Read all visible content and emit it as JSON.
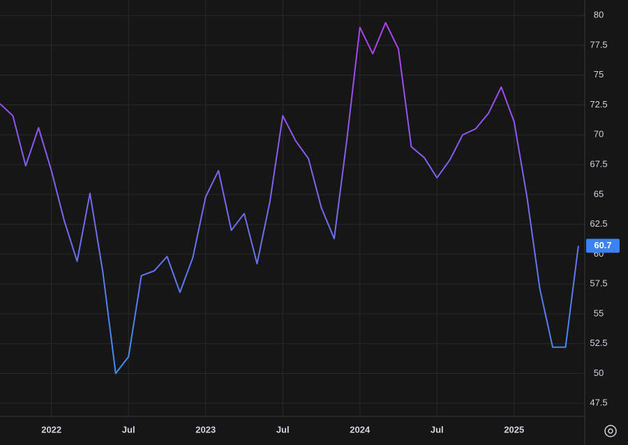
{
  "chart_data": {
    "type": "line",
    "x": [
      "2021-09",
      "2021-10",
      "2021-11",
      "2021-12",
      "2022-01",
      "2022-02",
      "2022-03",
      "2022-04",
      "2022-05",
      "2022-06",
      "2022-07",
      "2022-08",
      "2022-09",
      "2022-10",
      "2022-11",
      "2022-12",
      "2023-01",
      "2023-02",
      "2023-03",
      "2023-04",
      "2023-05",
      "2023-06",
      "2023-07",
      "2023-08",
      "2023-09",
      "2023-10",
      "2023-11",
      "2023-12",
      "2024-01",
      "2024-02",
      "2024-03",
      "2024-04",
      "2024-05",
      "2024-06",
      "2024-07",
      "2024-08",
      "2024-09",
      "2024-10",
      "2024-11",
      "2024-12",
      "2025-01",
      "2025-02",
      "2025-03",
      "2025-04",
      "2025-05",
      "2025-06"
    ],
    "series": [
      {
        "values": [
          72.6,
          71.6,
          67.4,
          70.6,
          67.0,
          62.8,
          59.4,
          65.1,
          58.5,
          50.0,
          51.4,
          58.2,
          58.6,
          59.8,
          56.8,
          59.7,
          64.8,
          67.0,
          62.0,
          63.4,
          59.2,
          64.4,
          71.6,
          69.5,
          68.0,
          63.9,
          61.3,
          69.7,
          79.0,
          76.8,
          79.4,
          77.2,
          69.0,
          68.1,
          66.4,
          67.9,
          70.0,
          70.5,
          71.8,
          74.0,
          71.1,
          64.8,
          57.1,
          52.2,
          52.2,
          60.7
        ],
        "gradient": [
          "#b23ff0",
          "#3d90f2"
        ]
      }
    ],
    "ylim": [
      46.4,
      81.3
    ],
    "yticks": [
      47.5,
      50,
      52.5,
      55,
      57.5,
      60,
      62.5,
      65,
      67.5,
      70,
      72.5,
      75,
      77.5,
      80
    ],
    "xticks": [
      {
        "value": "2022-01",
        "label": "2022"
      },
      {
        "value": "2022-07",
        "label": "Jul"
      },
      {
        "value": "2023-01",
        "label": "2023"
      },
      {
        "value": "2023-07",
        "label": "Jul"
      },
      {
        "value": "2024-01",
        "label": "2024"
      },
      {
        "value": "2024-07",
        "label": "Jul"
      },
      {
        "value": "2025-01",
        "label": "2025"
      }
    ],
    "grid": true,
    "background": "#161616",
    "grid_color": "#2a2a2a",
    "last_label_color": "#3b82f6"
  }
}
